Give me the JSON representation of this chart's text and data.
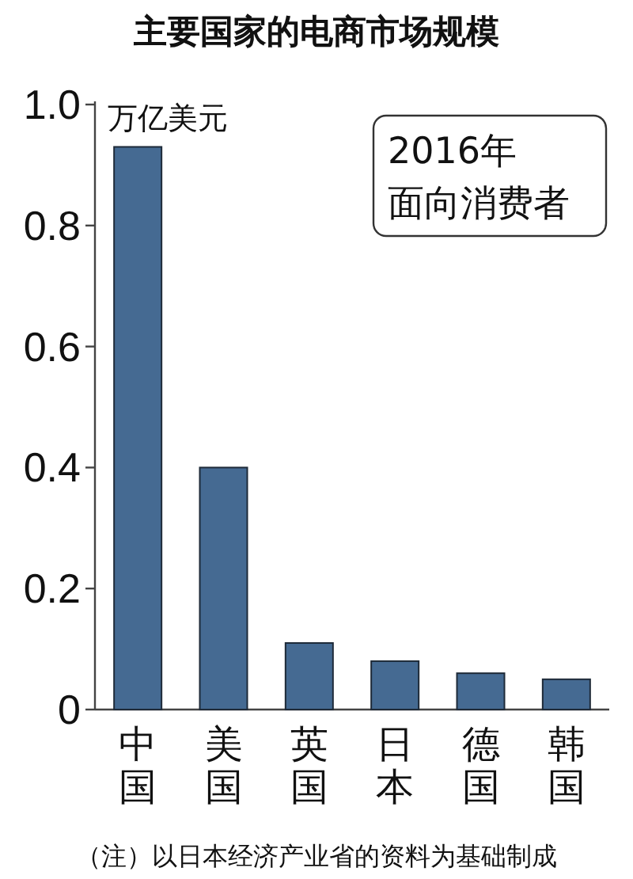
{
  "chart_data": {
    "type": "bar",
    "title": "主要国家的电商市场规模",
    "ylabel": "万亿美元",
    "categories": [
      "中国",
      "美国",
      "英国",
      "日本",
      "德国",
      "韩国"
    ],
    "values": [
      0.93,
      0.4,
      0.11,
      0.08,
      0.06,
      0.05
    ],
    "color": "#456a92",
    "ylim": [
      0,
      1.0
    ],
    "yticks": [
      0,
      0.2,
      0.4,
      0.6,
      0.8,
      {
        "value": 1.0,
        "label": "1.0"
      }
    ],
    "grid": false,
    "annotations": [
      "2016年",
      "面向消费者",
      "（注）以日本经济产业省的资料为基础制成"
    ]
  }
}
